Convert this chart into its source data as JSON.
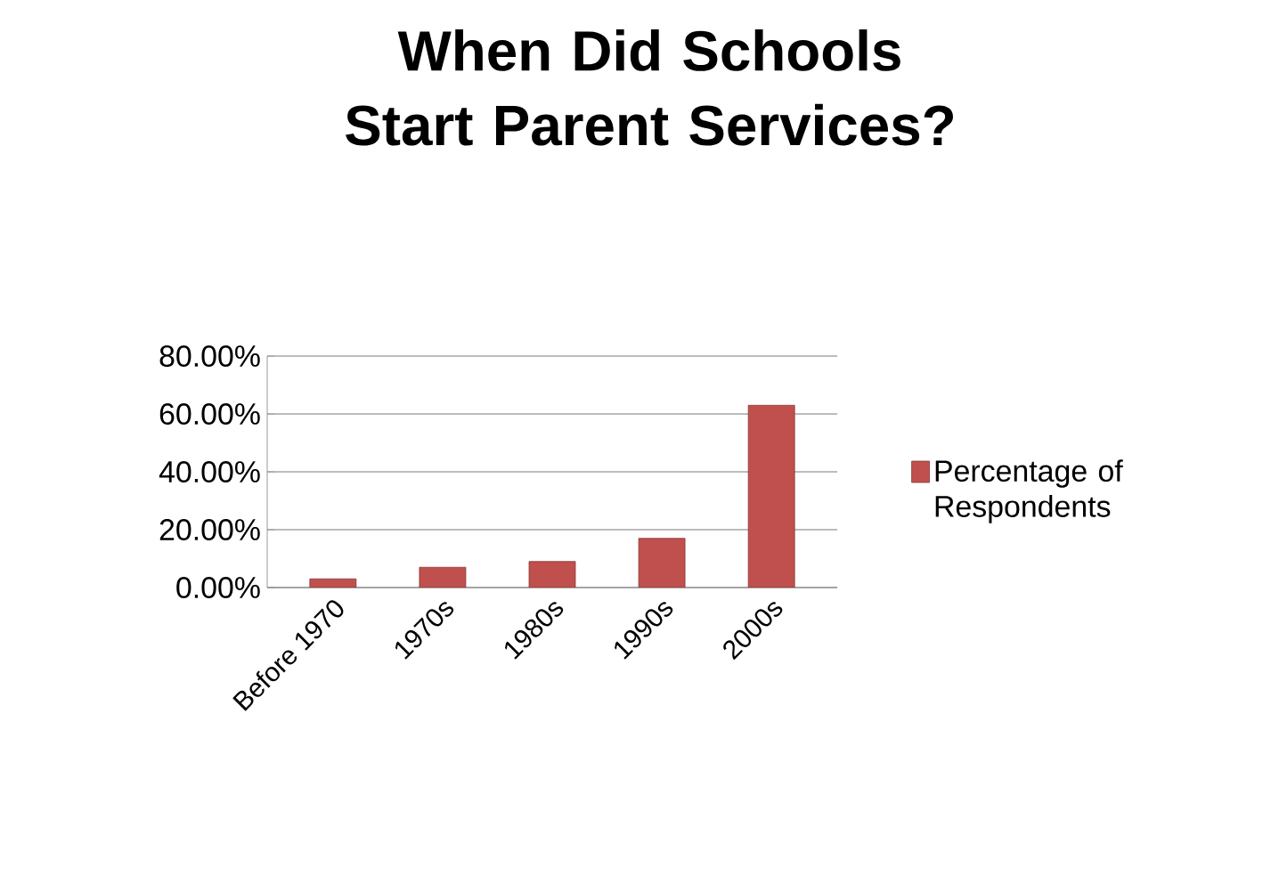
{
  "chart_data": {
    "type": "bar",
    "title": "When Did Schools Start Parent Services?",
    "categories": [
      "Before 1970",
      "1970s",
      "1980s",
      "1990s",
      "2000s"
    ],
    "series": [
      {
        "name": "Percentage of Respondents",
        "color": "#c0504d",
        "values": [
          3,
          7,
          9,
          17,
          63
        ]
      }
    ],
    "ylim": [
      0,
      80
    ],
    "yticks": [
      {
        "value": 0,
        "label": "0.00%"
      },
      {
        "value": 20,
        "label": "20.00%"
      },
      {
        "value": 40,
        "label": "40.00%"
      },
      {
        "value": 60,
        "label": "60.00%"
      },
      {
        "value": 80,
        "label": "80.00%"
      }
    ],
    "grid": "y",
    "legend": "right"
  }
}
